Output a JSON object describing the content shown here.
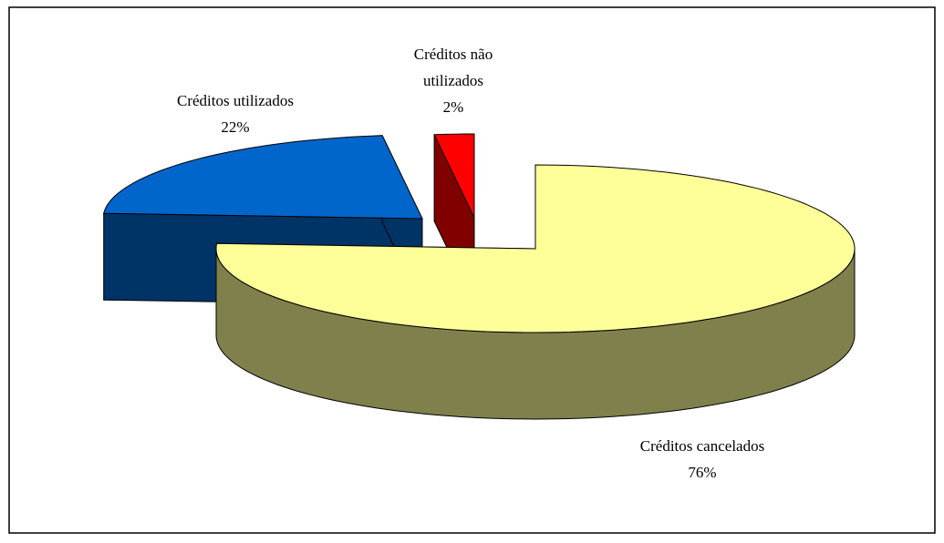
{
  "chart_data": {
    "type": "pie3d",
    "categories": [
      "Créditos cancelados",
      "Créditos utilizados",
      "Créditos não utilizados"
    ],
    "values": [
      76,
      22,
      2
    ],
    "value_labels": [
      "76%",
      "22%",
      "2%"
    ],
    "colors": [
      "#ffff99",
      "#0066cc",
      "#ff0000"
    ]
  }
}
